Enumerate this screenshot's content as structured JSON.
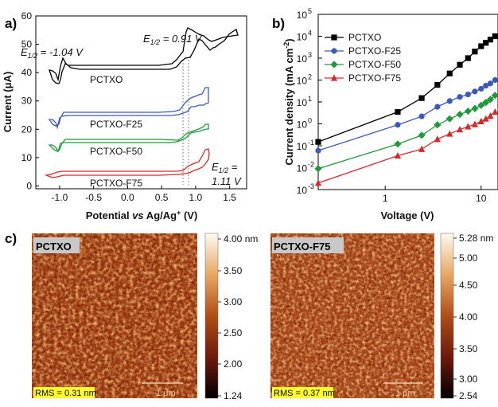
{
  "panels": {
    "a": {
      "letter": "a)"
    },
    "b": {
      "letter": "b)"
    },
    "c": {
      "letter": "c)"
    }
  },
  "cv": {
    "ylabel": "Current (μA)",
    "xlabel_parts": [
      "Potential ",
      "vs",
      " Ag/Ag",
      "+",
      " (V)"
    ],
    "yticks": [
      "0",
      "10",
      "20",
      "30",
      "40",
      "50",
      "60"
    ],
    "xticks": [
      "-1.0",
      "-0.5",
      "0.0",
      "0.5",
      "1.0",
      "1.5"
    ],
    "ann_left": "E1/2 = -1.04 V",
    "ann_mid": "E1/2 = 0.91 V",
    "ann_right_1": "E1/2 =",
    "ann_right_2": "1.11 V",
    "curve_labels": [
      "PCTXO",
      "PCTXO-F25",
      "PCTXO-F50",
      "PCTXO-F75"
    ],
    "colors": [
      "#000000",
      "#3b5ab8",
      "#1f9a3a",
      "#d42a2a"
    ]
  },
  "chart_data": [
    {
      "type": "line",
      "title": "",
      "xlabel": "Potential vs Ag/Ag+ (V)",
      "ylabel": "Current (μA)",
      "xlim": [
        -1.35,
        1.75
      ],
      "ylim": [
        -1,
        60
      ],
      "series": [
        {
          "name": "PCTXO",
          "color": "#000000",
          "x": [
            -1.25,
            -1.2,
            -1.15,
            -1.1,
            -1.05,
            -1.0,
            -0.95,
            -0.8,
            -0.5,
            0.0,
            0.5,
            0.8,
            0.85,
            0.9,
            0.93,
            1.0,
            1.1,
            1.2,
            1.3,
            1.4,
            1.45,
            1.5,
            1.6,
            1.7
          ],
          "y": [
            39,
            39.5,
            40,
            41.5,
            45,
            43,
            42,
            41.5,
            41,
            41,
            41.5,
            41,
            40,
            38,
            37,
            40,
            46,
            49,
            52,
            55,
            57,
            56,
            55,
            58
          ]
        }
      ]
    },
    {
      "type": "line",
      "title": "",
      "xlabel": "Voltage (V)",
      "ylabel": "Current density (mA cm-2)",
      "xscale": "log",
      "yscale": "log",
      "xlim": [
        0.2,
        15
      ],
      "ylim": [
        0.001,
        100000
      ],
      "legend": "top-left",
      "x": [
        0.2,
        1.35,
        2.4,
        3.5,
        4.7,
        6.0,
        7.3,
        8.6,
        10,
        11.2,
        12.5,
        14
      ],
      "series": [
        {
          "name": "PCTXO",
          "color": "#000000",
          "marker": "square",
          "values": [
            0.15,
            3.5,
            15,
            60,
            200,
            500,
            1000,
            2000,
            3500,
            5000,
            7000,
            10000
          ]
        },
        {
          "name": "PCTXO-F25",
          "color": "#3b5ab8",
          "marker": "circle",
          "values": [
            0.06,
            0.9,
            2.2,
            6,
            11,
            17,
            22,
            30,
            40,
            55,
            70,
            100
          ]
        },
        {
          "name": "PCTXO-F50",
          "color": "#1f9a3a",
          "marker": "diamond",
          "values": [
            0.009,
            0.12,
            0.3,
            0.9,
            1.7,
            2.7,
            3.8,
            5.0,
            7.0,
            9.5,
            13,
            20
          ]
        },
        {
          "name": "PCTXO-F75",
          "color": "#d42a2a",
          "marker": "triangle",
          "values": [
            0.002,
            0.035,
            0.07,
            0.2,
            0.35,
            0.55,
            0.75,
            0.95,
            1.3,
            1.7,
            2.3,
            3.5
          ]
        }
      ]
    }
  ],
  "jv": {
    "ylabel": "Current density (mA cm-2)",
    "xlabel": "Voltage (V)",
    "yticks": [
      {
        "base": "10",
        "exp": "-3"
      },
      {
        "base": "10",
        "exp": "-2"
      },
      {
        "base": "10",
        "exp": "-1"
      },
      {
        "base": "10",
        "exp": "0"
      },
      {
        "base": "10",
        "exp": "1"
      },
      {
        "base": "10",
        "exp": "2"
      },
      {
        "base": "10",
        "exp": "3"
      },
      {
        "base": "10",
        "exp": "4"
      },
      {
        "base": "10",
        "exp": "5"
      }
    ],
    "xticks": [
      "1",
      "10"
    ]
  },
  "afm": [
    {
      "name": "PCTXO",
      "rms": "RMS = 0.31 nm",
      "scalebar": "1 μm",
      "colorbar_ticks": [
        "4.00 nm",
        "3.50",
        "3.00",
        "2.50",
        "2.00",
        "1.24"
      ]
    },
    {
      "name": "PCTXO-F75",
      "rms": "RMS = 0.37 nm",
      "scalebar": "1 μm",
      "colorbar_ticks": [
        "5.28 nm",
        "5.00",
        "4.50",
        "4.00",
        "3.50",
        "3.00",
        "2.54"
      ]
    }
  ]
}
